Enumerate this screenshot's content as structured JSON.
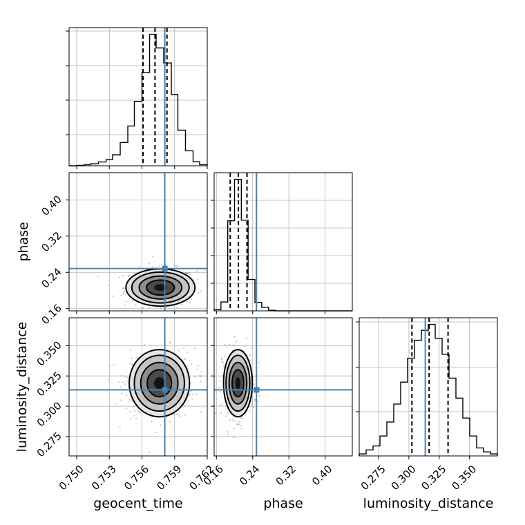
{
  "chart_data": {
    "type": "corner",
    "parameters": [
      "geocent_time",
      "phase",
      "luminosity_distance"
    ],
    "truths": {
      "geocent_time": 0.7581,
      "phase": 0.2485,
      "luminosity_distance": 0.3135
    },
    "ranges": {
      "geocent_time": [
        0.7493,
        0.762
      ],
      "phase": [
        0.155,
        0.46
      ],
      "luminosity_distance": [
        0.259,
        0.373
      ]
    },
    "ticks": {
      "geocent_time": [
        "0.750",
        "0.753",
        "0.756",
        "0.759",
        "0.762"
      ],
      "phase": [
        "0.16",
        "0.24",
        "0.32",
        "0.40"
      ],
      "luminosity_distance": [
        "0.275",
        "0.300",
        "0.325",
        "0.350"
      ]
    },
    "tick_values": {
      "geocent_time": [
        0.75,
        0.753,
        0.756,
        0.759,
        0.762
      ],
      "phase": [
        0.16,
        0.24,
        0.32,
        0.4
      ],
      "luminosity_distance": [
        0.275,
        0.3,
        0.325,
        0.35
      ]
    },
    "hist_y_fractions": {
      "geocent_time": [
        0.225,
        0.475,
        0.725,
        0.975
      ],
      "phase": [
        0.2,
        0.4,
        0.6,
        0.8
      ],
      "luminosity_distance": [
        0.32,
        0.64,
        0.97
      ]
    },
    "quantiles": {
      "geocent_time": [
        0.7561,
        0.7572,
        0.7583
      ],
      "phase": [
        0.1905,
        0.2085,
        0.2275
      ],
      "luminosity_distance": [
        0.3025,
        0.3167,
        0.3323
      ]
    },
    "histograms": {
      "geocent_time": {
        "edges": [
          0.7493,
          0.75,
          0.7507,
          0.7513,
          0.752,
          0.7527,
          0.7533,
          0.754,
          0.7547,
          0.7553,
          0.756,
          0.7567,
          0.7573,
          0.758,
          0.7587,
          0.7593,
          0.76,
          0.7607,
          0.7613,
          0.762
        ],
        "counts": [
          0,
          3,
          8,
          15,
          28,
          45,
          80,
          170,
          290,
          470,
          680,
          960,
          860,
          750,
          520,
          260,
          110,
          30,
          8
        ]
      },
      "phase": {
        "edges": [
          0.155,
          0.17,
          0.185,
          0.2,
          0.215,
          0.23,
          0.245,
          0.26,
          0.275,
          0.29,
          0.305,
          0.32,
          0.335,
          0.35,
          0.365,
          0.38,
          0.395,
          0.41,
          0.425,
          0.44,
          0.46
        ],
        "counts": [
          2,
          15,
          152,
          222,
          153,
          53,
          14,
          6,
          1,
          0,
          0,
          0,
          0,
          0,
          0,
          0,
          0,
          0,
          0,
          0
        ]
      },
      "luminosity_distance": {
        "edges": [
          0.259,
          0.2647,
          0.2704,
          0.2761,
          0.2818,
          0.2875,
          0.2932,
          0.2989,
          0.3046,
          0.3103,
          0.316,
          0.3217,
          0.3274,
          0.3331,
          0.3388,
          0.3445,
          0.3502,
          0.3559,
          0.3616,
          0.3673,
          0.373
        ],
        "counts": [
          1,
          3,
          5,
          10,
          17,
          26,
          37,
          49,
          58,
          63,
          66,
          59,
          51,
          39,
          29,
          19,
          10,
          4,
          2,
          1
        ]
      }
    },
    "pairs": [
      {
        "x": "geocent_time",
        "y": "phase",
        "center": [
          0.7577,
          0.2065
        ],
        "spread": [
          0.00135,
          0.0175
        ],
        "level_scales": [
          2.35,
          1.95,
          1.45,
          0.95,
          0.42
        ],
        "scatter_sd": [
          0.00165,
          0.021
        ],
        "scatter_n": 420
      },
      {
        "x": "geocent_time",
        "y": "luminosity_distance",
        "center": [
          0.7576,
          0.319
        ],
        "spread": [
          0.00118,
          0.0118
        ],
        "level_scales": [
          2.35,
          1.95,
          1.45,
          0.95,
          0.42
        ],
        "scatter_sd": [
          0.0016,
          0.0142
        ],
        "scatter_n": 420
      },
      {
        "x": "phase",
        "y": "luminosity_distance",
        "center": [
          0.2075,
          0.319
        ],
        "spread": [
          0.0135,
          0.0118
        ],
        "level_scales": [
          2.35,
          1.95,
          1.45,
          0.95,
          0.42
        ],
        "scatter_sd": [
          0.0175,
          0.0142
        ],
        "scatter_n": 420
      }
    ],
    "labels": {
      "x": [
        "geocent_time",
        "phase",
        "luminosity_distance"
      ],
      "y": [
        "phase",
        "luminosity_distance"
      ]
    }
  }
}
